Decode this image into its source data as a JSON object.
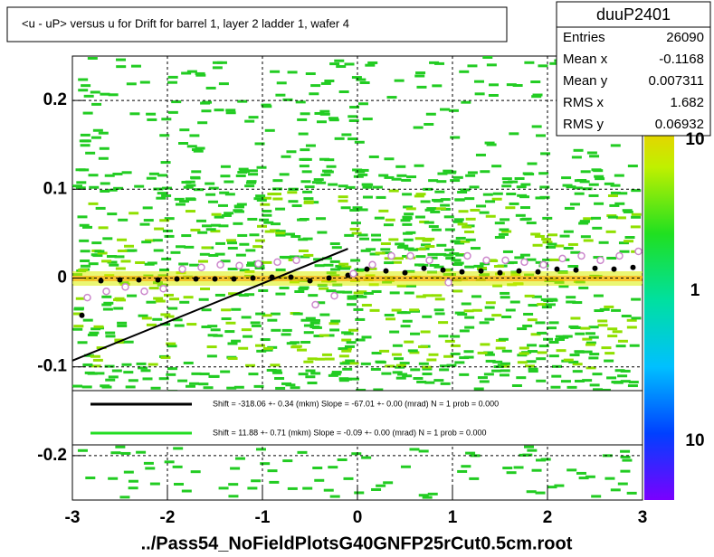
{
  "chart_data": {
    "type": "profile2d",
    "title": "<u - uP>       versus   u for Drift for barrel 1, layer 2 ladder 1, wafer 4",
    "footer": "../Pass54_NoFieldPlotsG40GNFP25rCut0.5cm.root",
    "stats": {
      "name": "duuP2401",
      "rows": [
        [
          "Entries",
          "26090"
        ],
        [
          "Mean x",
          "-0.1168"
        ],
        [
          "Mean y",
          "0.007311"
        ],
        [
          "RMS x",
          "1.682"
        ],
        [
          "RMS y",
          "0.06932"
        ]
      ]
    },
    "xlim": [
      -3,
      3
    ],
    "xticks": [
      -3,
      -2,
      -1,
      0,
      1,
      2,
      3
    ],
    "ylim": [
      -0.25,
      0.25
    ],
    "yticks": [
      -0.2,
      -0.1,
      0,
      0.1,
      0.2
    ],
    "grid": true,
    "colorbar_labels": [
      "10",
      "1",
      "10"
    ],
    "x": [
      -2.9,
      -2.7,
      -2.5,
      -2.3,
      -2.1,
      -1.9,
      -1.7,
      -1.5,
      -1.3,
      -1.1,
      -0.9,
      -0.7,
      -0.5,
      -0.3,
      -0.1,
      0.1,
      0.3,
      0.5,
      0.7,
      0.9,
      1.1,
      1.3,
      1.5,
      1.7,
      1.9,
      2.1,
      2.3,
      2.5,
      2.7,
      2.9
    ],
    "series": [
      {
        "color": "#000000",
        "marker": "filled",
        "values": [
          -0.042,
          -0.003,
          -0.002,
          -0.002,
          -0.002,
          -0.001,
          -0.001,
          -0.001,
          -0.001,
          0.0,
          0.001,
          0.001,
          -0.003,
          0.0,
          0.003,
          0.01,
          0.008,
          0.006,
          0.011,
          0.009,
          0.007,
          0.008,
          0.006,
          0.008,
          0.007,
          0.01,
          0.009,
          0.011,
          0.01,
          0.012
        ]
      },
      {
        "color": "#cc88cc",
        "marker": "open",
        "values": [
          -0.022,
          -0.015,
          -0.01,
          -0.015,
          -0.012,
          0.01,
          0.012,
          0.015,
          0.014,
          0.016,
          0.018,
          0.02,
          -0.03,
          -0.02,
          0.005,
          0.015,
          0.025,
          0.025,
          0.02,
          -0.005,
          0.025,
          0.02,
          0.02,
          0.018,
          0.015,
          0.022,
          0.025,
          0.02,
          0.025,
          0.03
        ]
      }
    ],
    "fits": [
      {
        "color": "#000000",
        "x": [
          -3,
          -0.1
        ],
        "values": [
          -0.093,
          0.033
        ],
        "label": "Shift =  -318.06 +- 0.34 (mkm) Slope =   -67.01 +- 0.00 (mrad)  N = 1 prob = 0.000"
      },
      {
        "color": "#22dd22",
        "x": [
          -3,
          3
        ],
        "values": [
          0.001,
          0.001
        ],
        "label": "Shift =    11.88 +- 0.71 (mkm) Slope =    -0.09 +- 0.00 (mrad)  N = 1 prob = 0.000"
      }
    ]
  }
}
